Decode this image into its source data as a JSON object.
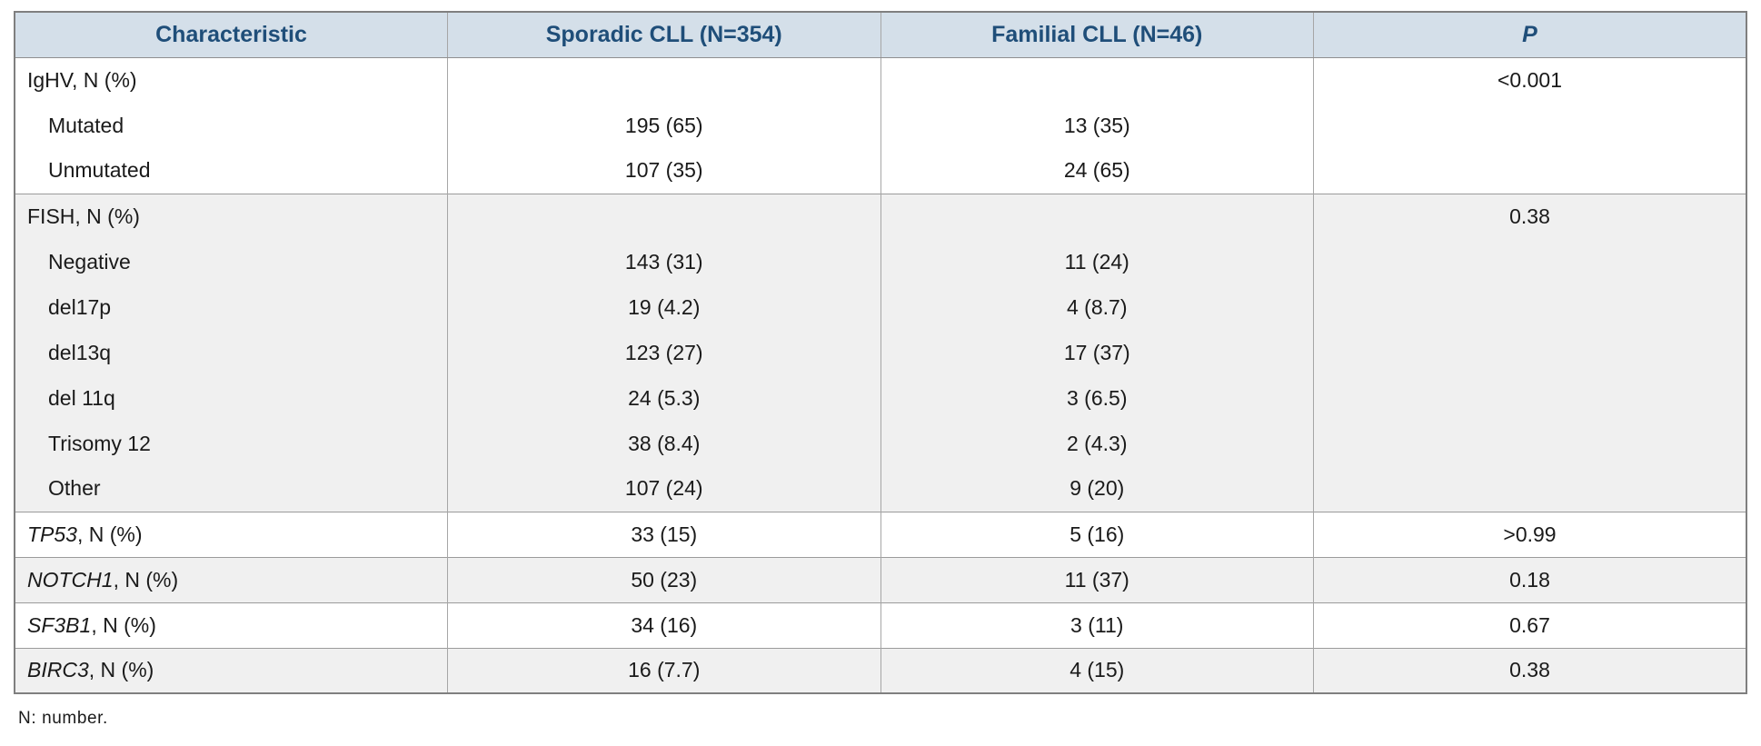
{
  "table": {
    "columns": [
      "Characteristic",
      "Sporadic CLL (N=354)",
      "Familial CLL (N=46)",
      "P"
    ],
    "groups": [
      {
        "rows": [
          {
            "label": "IgHV, N (%)",
            "sporadic": "",
            "familial": "",
            "p": "<0.001"
          },
          {
            "label": "Mutated",
            "indent": true,
            "sporadic": "195 (65)",
            "familial": "13 (35)",
            "p": ""
          },
          {
            "label": "Unmutated",
            "indent": true,
            "sporadic": "107 (35)",
            "familial": "24 (65)",
            "p": ""
          }
        ]
      },
      {
        "rows": [
          {
            "label": "FISH, N (%)",
            "sporadic": "",
            "familial": "",
            "p": "0.38"
          },
          {
            "label": "Negative",
            "indent": true,
            "sporadic": "143 (31)",
            "familial": "11 (24)",
            "p": ""
          },
          {
            "label": "del17p",
            "indent": true,
            "sporadic": "19 (4.2)",
            "familial": "4 (8.7)",
            "p": ""
          },
          {
            "label": "del13q",
            "indent": true,
            "sporadic": "123 (27)",
            "familial": "17 (37)",
            "p": ""
          },
          {
            "label": "del 11q",
            "indent": true,
            "sporadic": "24 (5.3)",
            "familial": "3 (6.5)",
            "p": ""
          },
          {
            "label": "Trisomy 12",
            "indent": true,
            "sporadic": "38 (8.4)",
            "familial": "2 (4.3)",
            "p": ""
          },
          {
            "label": "Other",
            "indent": true,
            "sporadic": "107 (24)",
            "familial": "9 (20)",
            "p": ""
          }
        ]
      },
      {
        "rows": [
          {
            "gene": "TP53",
            "rest": ", N (%)",
            "sporadic": "33 (15)",
            "familial": "5 (16)",
            "p": ">0.99"
          }
        ]
      },
      {
        "rows": [
          {
            "gene": "NOTCH1",
            "rest": ", N (%)",
            "sporadic": "50 (23)",
            "familial": "11 (37)",
            "p": "0.18"
          }
        ]
      },
      {
        "rows": [
          {
            "gene": "SF3B1",
            "rest": ", N (%)",
            "sporadic": "34 (16)",
            "familial": "3 (11)",
            "p": "0.67"
          }
        ]
      },
      {
        "rows": [
          {
            "gene": "BIRC3",
            "rest": ", N (%)",
            "sporadic": "16 (7.7)",
            "familial": "4 (15)",
            "p": "0.38"
          }
        ]
      }
    ]
  },
  "footnote": "N: number.",
  "colors": {
    "header_bg": "#d4dfe9",
    "header_text": "#1f4e79",
    "shaded_row_bg": "#f0f0f0",
    "outer_border": "#7f7f7f",
    "inner_border": "#a6a6a6"
  }
}
